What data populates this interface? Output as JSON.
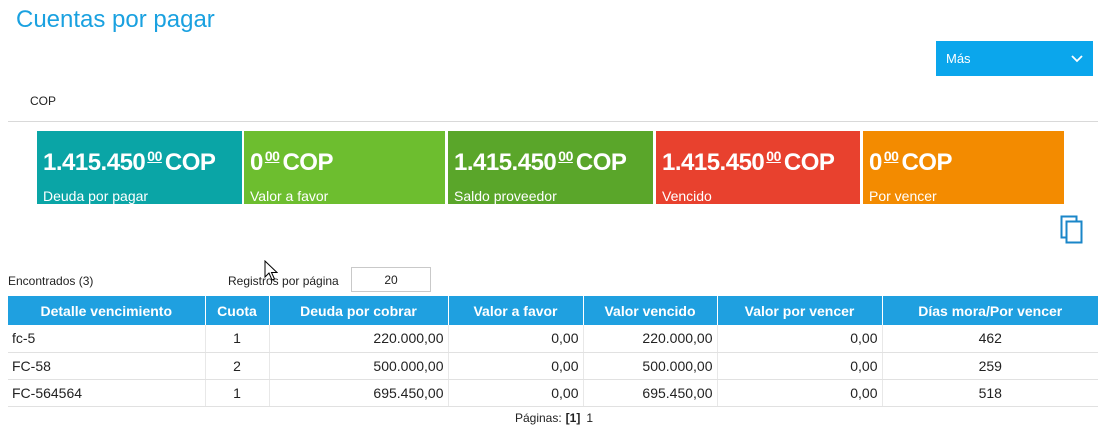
{
  "page": {
    "title": "Cuentas por pagar"
  },
  "more_dropdown": {
    "label": "Más"
  },
  "currency": "COP",
  "cards": [
    {
      "int": "1.415.450",
      "dec": "00",
      "cur": "COP",
      "label": "Deuda por pagar",
      "color": "#0aa5a6"
    },
    {
      "int": "0",
      "dec": "00",
      "cur": "COP",
      "label": "Valor a favor",
      "color": "#6dbe2f"
    },
    {
      "int": "1.415.450",
      "dec": "00",
      "cur": "COP",
      "label": "Saldo proveedor",
      "color": "#5aa62a"
    },
    {
      "int": "1.415.450",
      "dec": "00",
      "cur": "COP",
      "label": "Vencido",
      "color": "#e8412e"
    },
    {
      "int": "0",
      "dec": "00",
      "cur": "COP",
      "label": "Por vencer",
      "color": "#f38b00"
    }
  ],
  "list": {
    "found_label": "Encontrados (3)",
    "per_page_label": "Registros por página",
    "per_page_value": "20"
  },
  "table": {
    "headers": [
      "Detalle vencimiento",
      "Cuota",
      "Deuda por cobrar",
      "Valor a favor",
      "Valor vencido",
      "Valor por vencer",
      "Días mora/Por vencer"
    ],
    "rows": [
      [
        "fc-5",
        "1",
        "220.000,00",
        "0,00",
        "220.000,00",
        "0,00",
        "462"
      ],
      [
        "FC-58",
        "2",
        "500.000,00",
        "0,00",
        "500.000,00",
        "0,00",
        "259"
      ],
      [
        "FC-564564",
        "1",
        "695.450,00",
        "0,00",
        "695.450,00",
        "0,00",
        "518"
      ]
    ]
  },
  "pager": {
    "label": "Páginas:",
    "current": "[1]",
    "page1": "1"
  }
}
